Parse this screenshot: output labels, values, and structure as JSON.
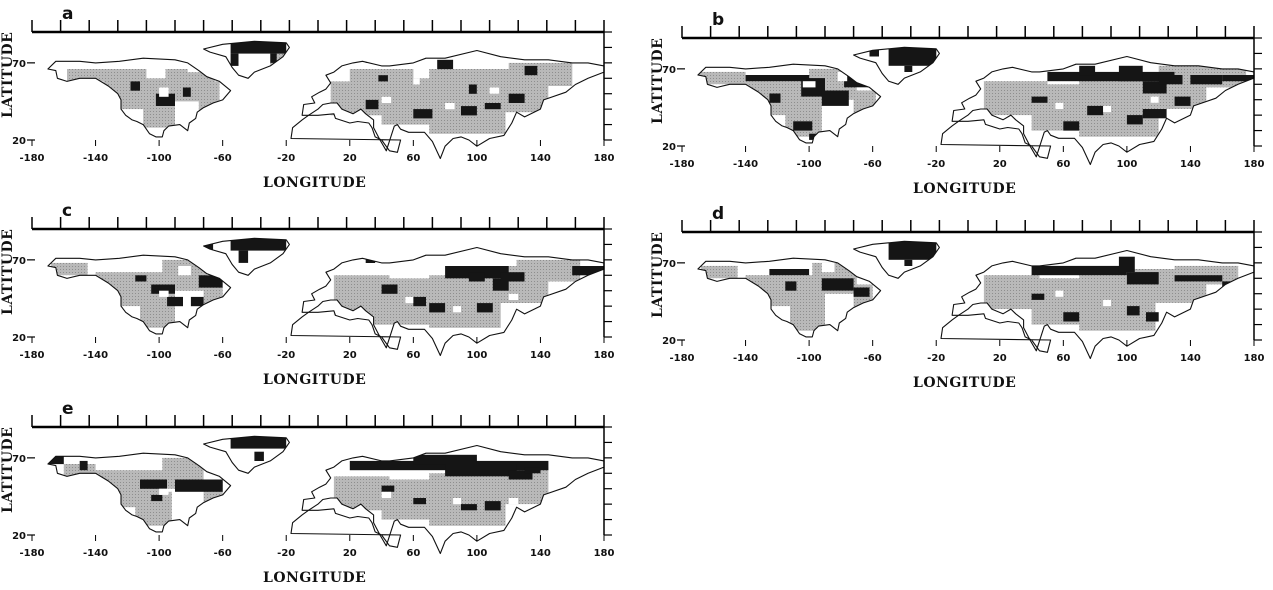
{
  "figure": {
    "ylabel": "LATITUDE",
    "xlabel": "LONGITUDE",
    "x_ticks": [
      "-180",
      "-140",
      "-100",
      "-60",
      "-20",
      "20",
      "60",
      "100",
      "140",
      "180"
    ],
    "y_ticks": [
      "70",
      "20"
    ],
    "colors": {
      "ocean": "#ffffff",
      "category_gray": "#b9b9b9",
      "category_black": "#151515",
      "outline": "#111111"
    }
  },
  "panels": [
    {
      "id": "a",
      "label": "a"
    },
    {
      "id": "b",
      "label": "b"
    },
    {
      "id": "c",
      "label": "c"
    },
    {
      "id": "d",
      "label": "d"
    },
    {
      "id": "e",
      "label": "e"
    }
  ]
}
